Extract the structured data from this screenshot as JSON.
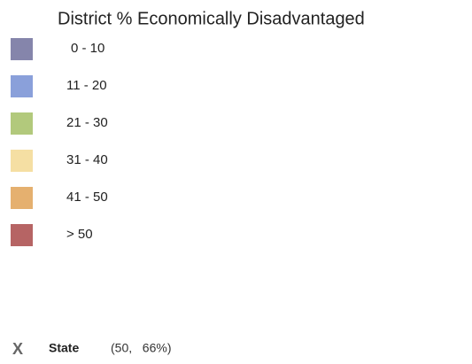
{
  "legend": {
    "title": "District % Economically Disadvantaged",
    "items": [
      {
        "label": "0 - 10",
        "color": "#8585ab"
      },
      {
        "label": "11 - 20",
        "color": "#8aa0da"
      },
      {
        "label": "21 - 30",
        "color": "#b2c97c"
      },
      {
        "label": "31 - 40",
        "color": "#f5dfa3"
      },
      {
        "label": "41 - 50",
        "color": "#e5b06f"
      },
      {
        "label": "> 50",
        "color": "#b66464"
      }
    ]
  },
  "marker": {
    "symbol": "X",
    "label": "State",
    "value": "(50,   66%)"
  }
}
